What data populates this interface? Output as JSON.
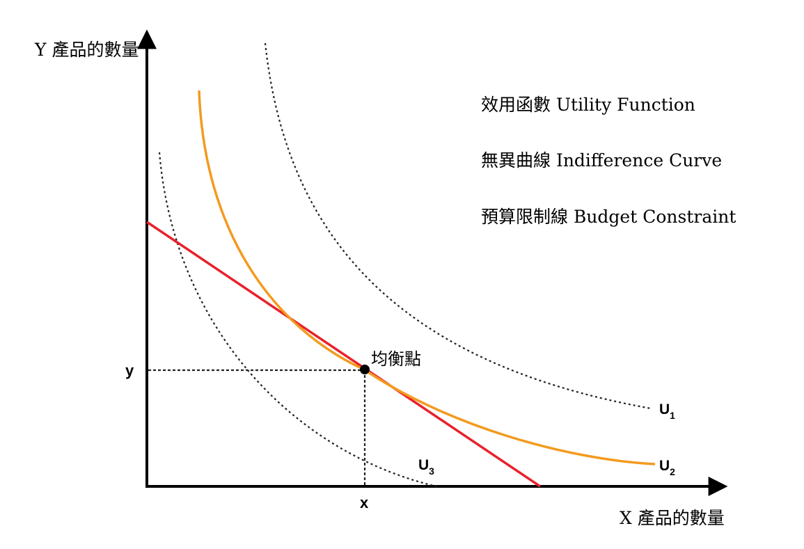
{
  "axes": {
    "y_label": "Y 產品的數量",
    "x_label": "X 產品的數量",
    "y_tick": "y",
    "x_tick": "x"
  },
  "legend": {
    "utility": "效用函數 Utility Function",
    "indifference": "無異曲線 Indifference Curve",
    "budget": "預算限制線 Budget Constraint"
  },
  "equilibrium_label": "均衡點",
  "curves": {
    "u1": {
      "letter": "U",
      "sub": "1"
    },
    "u2": {
      "letter": "U",
      "sub": "2"
    },
    "u3": {
      "letter": "U",
      "sub": "3"
    }
  },
  "colors": {
    "axis": "#000000",
    "indifference": "#f39a1e",
    "budget": "#e8212b",
    "dotted": "#222222"
  }
}
